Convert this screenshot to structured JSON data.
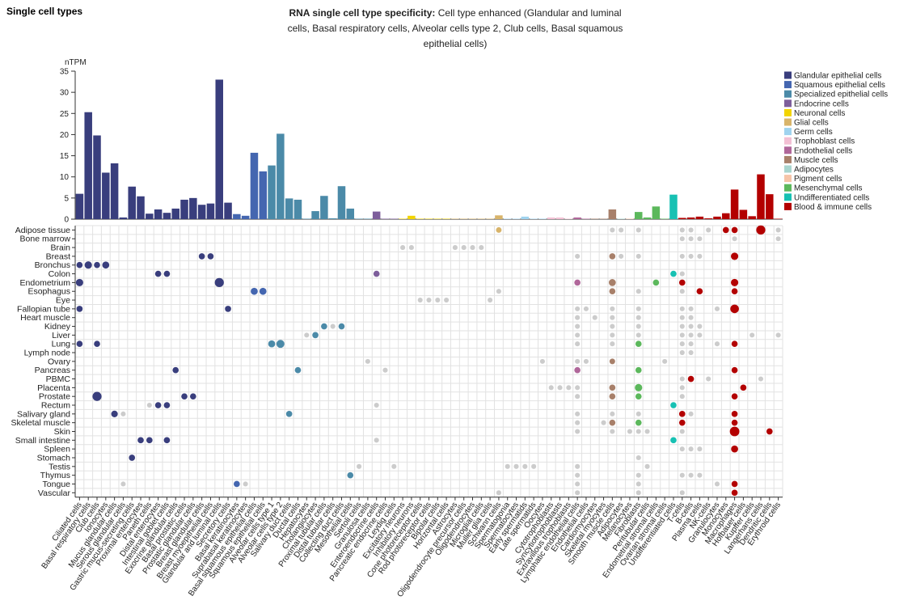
{
  "header": {
    "title": "Single cell types"
  },
  "chart_data": {
    "type": "bar",
    "title_bold": "RNA single cell type specificity:",
    "title": "Cell type enhanced (Glandular and luminal cells, Basal respiratory cells, Alveolar cells type 2, Club cells, Basal squamous epithelial cells)",
    "ylabel": "nTPM",
    "ylim": [
      0,
      35
    ],
    "yticks": [
      0,
      5,
      10,
      15,
      20,
      25,
      30,
      35
    ],
    "legend": [
      {
        "name": "Glandular epithelial cells",
        "color": "#393e7d"
      },
      {
        "name": "Squamous epithelial cells",
        "color": "#4466b0"
      },
      {
        "name": "Specialized epithelial cells",
        "color": "#4b8aa8"
      },
      {
        "name": "Endocrine cells",
        "color": "#7d5e9b"
      },
      {
        "name": "Neuronal cells",
        "color": "#f2d400"
      },
      {
        "name": "Glial cells",
        "color": "#d8b46a"
      },
      {
        "name": "Germ cells",
        "color": "#9fd3ef"
      },
      {
        "name": "Trophoblast cells",
        "color": "#f3c0d4"
      },
      {
        "name": "Endothelial cells",
        "color": "#b0679a"
      },
      {
        "name": "Muscle cells",
        "color": "#a8806a"
      },
      {
        "name": "Adipocytes",
        "color": "#a9d5cf"
      },
      {
        "name": "Pigment cells",
        "color": "#f6c4a8"
      },
      {
        "name": "Mesenchymal cells",
        "color": "#5cb85c"
      },
      {
        "name": "Undifferentiated cells",
        "color": "#17c1b3"
      },
      {
        "name": "Blood & immune cells",
        "color": "#b30000"
      }
    ],
    "categories": [
      "Ciliated cells",
      "Basal respiratory cells",
      "Club cells",
      "Ionocytes",
      "Mucus glandular cells",
      "Serous glandular cells",
      "Gastric mucus-secreting cells",
      "Proximal enterocytes",
      "Paneth cells",
      "Distal enterocytes",
      "Intestinal goblet cells",
      "Exocrine glandular cells",
      "Basal prostatic cells",
      "Prostatic glandular cells",
      "Breast glandular cells",
      "Breast myoepithelial cells",
      "Glandular and luminal cells",
      "Secretory cells",
      "Basal keratinocytes",
      "Suprabasal keratinocytes",
      "Basal squamous epithelial cells",
      "Squamous epithelial cells",
      "Alveolar cells type 1",
      "Alveolar cells type 2",
      "Salivary duct cells",
      "Ductal cells",
      "Hepatocytes",
      "Cholangiocytes",
      "Proximal tubular cells",
      "Distal tubular cells",
      "Collecting duct cells",
      "Mesothelial cells",
      "Sertoli cells",
      "Granulosa cells",
      "Enteroendocrine cells",
      "Pancreatic endocrine cells",
      "Leydig cells",
      "Excitatory neurons",
      "Inhibitory neurons",
      "Cone photoreceptor cells",
      "Rod photoreceptor cells",
      "Bipolar cells",
      "Horizontal cells",
      "Astrocytes",
      "Oligodendrocyte precursor cells",
      "Oligodendrocytes",
      "Microglial cells",
      "Muller glia cells",
      "Schwann cells",
      "Spermatogonia",
      "Spermatocytes",
      "Early spermatids",
      "Late spermatids",
      "Oocytes",
      "Cytotrophoblasts",
      "Syncytiotrophoblasts",
      "Extravillous trophoblasts",
      "Lymphatic endothelial cells",
      "Endothelial cells",
      "Cardiomyocytes",
      "Skeletal myocytes",
      "Smooth muscle cells",
      "Adipocytes",
      "Melanocytes",
      "Fibroblasts",
      "Peritubular cells",
      "Endometrial stromal cells",
      "Ovarian stromal cells",
      "Undifferentiated cells",
      "T-cells",
      "B-cells",
      "Plasma cells",
      "NK-cells",
      "Granulocytes",
      "Monocytes",
      "Macrophages",
      "Hofbauer cells",
      "Kupffer cells",
      "Langerhans cells",
      "Dendritic cells",
      "Erythroid cells"
    ],
    "group": [
      0,
      0,
      0,
      0,
      0,
      0,
      0,
      0,
      0,
      0,
      0,
      0,
      0,
      0,
      0,
      0,
      0,
      0,
      1,
      1,
      1,
      1,
      2,
      2,
      2,
      2,
      2,
      2,
      2,
      2,
      2,
      2,
      2,
      2,
      3,
      3,
      3,
      4,
      4,
      4,
      4,
      4,
      4,
      5,
      5,
      5,
      5,
      5,
      5,
      6,
      6,
      6,
      6,
      6,
      7,
      7,
      7,
      8,
      8,
      9,
      9,
      9,
      10,
      11,
      12,
      12,
      12,
      12,
      13,
      14,
      14,
      14,
      14,
      14,
      14,
      14,
      14,
      14,
      14,
      14,
      14
    ],
    "values": [
      6,
      25.3,
      19.8,
      11,
      13.2,
      0.4,
      7.7,
      5.4,
      1.3,
      2.3,
      1.5,
      2.5,
      4.6,
      5,
      3.4,
      3.7,
      33,
      3.9,
      1.2,
      0.8,
      15.7,
      11.3,
      12.7,
      20.2,
      4.9,
      4.6,
      0.1,
      1.9,
      5.5,
      0.2,
      7.8,
      2.5,
      0.1,
      0.1,
      1.8,
      0.1,
      0.1,
      0.1,
      0.8,
      0.1,
      0.1,
      0.1,
      0.1,
      0.1,
      0.1,
      0.1,
      0.1,
      0.1,
      0.9,
      0.1,
      0.1,
      0.6,
      0.1,
      0.1,
      0.4,
      0.4,
      0.1,
      0.4,
      0.1,
      0.1,
      0.1,
      2.3,
      0.1,
      0.1,
      1.7,
      0.4,
      3,
      0.1,
      5.8,
      0.3,
      0.4,
      0.6,
      0.2,
      0.6,
      1.4,
      7,
      2.2,
      0.7,
      10.6,
      5.9,
      0.1
    ],
    "tissues": [
      "Adipose tissue",
      "Bone marrow",
      "Brain",
      "Breast",
      "Bronchus",
      "Colon",
      "Endometrium",
      "Esophagus",
      "Eye",
      "Fallopian tube",
      "Heart muscle",
      "Kidney",
      "Liver",
      "Lung",
      "Lymph node",
      "Ovary",
      "Pancreas",
      "PBMC",
      "Placenta",
      "Prostate",
      "Rectum",
      "Salivary gland",
      "Skeletal muscle",
      "Skin",
      "Small intestine",
      "Spleen",
      "Stomach",
      "Testis",
      "Thymus",
      "Tongue",
      "Vascular"
    ],
    "enhanced_dots": [
      [
        0,
        48,
        2
      ],
      [
        0,
        74,
        3
      ],
      [
        0,
        75,
        3
      ],
      [
        0,
        78,
        12
      ],
      [
        3,
        14,
        3
      ],
      [
        3,
        15,
        3
      ],
      [
        3,
        61,
        3
      ],
      [
        3,
        75,
        6
      ],
      [
        4,
        0,
        3
      ],
      [
        4,
        1,
        6
      ],
      [
        4,
        2,
        3
      ],
      [
        4,
        3,
        5
      ],
      [
        5,
        9,
        3
      ],
      [
        5,
        10,
        3
      ],
      [
        5,
        34,
        3
      ],
      [
        5,
        68,
        3
      ],
      [
        6,
        0,
        6
      ],
      [
        6,
        16,
        12
      ],
      [
        6,
        57,
        3
      ],
      [
        6,
        61,
        5
      ],
      [
        6,
        66,
        3
      ],
      [
        6,
        69,
        3
      ],
      [
        6,
        75,
        6
      ],
      [
        7,
        20,
        5
      ],
      [
        7,
        21,
        5
      ],
      [
        7,
        61,
        3
      ],
      [
        7,
        71,
        3
      ],
      [
        7,
        75,
        3
      ],
      [
        9,
        0,
        3
      ],
      [
        9,
        17,
        3
      ],
      [
        9,
        75,
        10
      ],
      [
        11,
        28,
        3
      ],
      [
        11,
        30,
        3
      ],
      [
        12,
        27,
        3
      ],
      [
        13,
        0,
        3
      ],
      [
        13,
        2,
        3
      ],
      [
        13,
        22,
        5
      ],
      [
        13,
        23,
        8
      ],
      [
        13,
        64,
        3
      ],
      [
        13,
        75,
        3
      ],
      [
        15,
        61,
        2
      ],
      [
        16,
        11,
        3
      ],
      [
        16,
        25,
        3
      ],
      [
        16,
        57,
        3
      ],
      [
        16,
        64,
        3
      ],
      [
        16,
        75,
        3
      ],
      [
        17,
        70,
        3
      ],
      [
        18,
        61,
        3
      ],
      [
        18,
        64,
        6
      ],
      [
        18,
        76,
        3
      ],
      [
        19,
        2,
        12
      ],
      [
        19,
        12,
        3
      ],
      [
        19,
        13,
        3
      ],
      [
        19,
        61,
        3
      ],
      [
        19,
        64,
        3
      ],
      [
        19,
        75,
        3
      ],
      [
        20,
        9,
        3
      ],
      [
        20,
        10,
        3
      ],
      [
        20,
        68,
        3
      ],
      [
        21,
        4,
        4
      ],
      [
        21,
        24,
        3
      ],
      [
        21,
        69,
        3
      ],
      [
        21,
        75,
        3
      ],
      [
        22,
        61,
        3
      ],
      [
        22,
        64,
        3
      ],
      [
        22,
        69,
        3
      ],
      [
        22,
        75,
        3
      ],
      [
        23,
        75,
        14
      ],
      [
        23,
        79,
        3
      ],
      [
        24,
        7,
        3
      ],
      [
        24,
        8,
        3
      ],
      [
        24,
        10,
        3
      ],
      [
        24,
        68,
        3
      ],
      [
        25,
        75,
        5
      ],
      [
        26,
        6,
        3
      ],
      [
        28,
        31,
        3
      ],
      [
        29,
        18,
        3
      ],
      [
        29,
        75,
        3
      ],
      [
        30,
        75,
        3
      ]
    ],
    "other_dots": [
      [
        0,
        61,
        1
      ],
      [
        0,
        62,
        1
      ],
      [
        0,
        64,
        1
      ],
      [
        0,
        69,
        1
      ],
      [
        0,
        70,
        1
      ],
      [
        0,
        72,
        1
      ],
      [
        0,
        80,
        1
      ],
      [
        1,
        69,
        1
      ],
      [
        1,
        70,
        1
      ],
      [
        1,
        71,
        1
      ],
      [
        1,
        75,
        1
      ],
      [
        1,
        80,
        1
      ],
      [
        2,
        37,
        1
      ],
      [
        2,
        38,
        1
      ],
      [
        2,
        43,
        1
      ],
      [
        2,
        44,
        1
      ],
      [
        2,
        45,
        1
      ],
      [
        2,
        46,
        1
      ],
      [
        3,
        57,
        1
      ],
      [
        3,
        62,
        1
      ],
      [
        3,
        64,
        1
      ],
      [
        3,
        69,
        1
      ],
      [
        3,
        70,
        1
      ],
      [
        3,
        71,
        1
      ],
      [
        5,
        69,
        1
      ],
      [
        7,
        48,
        1
      ],
      [
        7,
        64,
        1
      ],
      [
        7,
        69,
        1
      ],
      [
        8,
        39,
        1
      ],
      [
        8,
        40,
        1
      ],
      [
        8,
        41,
        1
      ],
      [
        8,
        42,
        1
      ],
      [
        8,
        47,
        1
      ],
      [
        9,
        57,
        1
      ],
      [
        9,
        58,
        1
      ],
      [
        9,
        61,
        1
      ],
      [
        9,
        64,
        1
      ],
      [
        9,
        69,
        1
      ],
      [
        9,
        70,
        1
      ],
      [
        9,
        73,
        1
      ],
      [
        10,
        57,
        1
      ],
      [
        10,
        59,
        1
      ],
      [
        10,
        61,
        1
      ],
      [
        10,
        64,
        1
      ],
      [
        10,
        69,
        1
      ],
      [
        10,
        70,
        1
      ],
      [
        11,
        29,
        1
      ],
      [
        11,
        57,
        1
      ],
      [
        11,
        61,
        1
      ],
      [
        11,
        64,
        1
      ],
      [
        11,
        69,
        1
      ],
      [
        11,
        70,
        1
      ],
      [
        11,
        71,
        1
      ],
      [
        12,
        26,
        1
      ],
      [
        12,
        57,
        1
      ],
      [
        12,
        61,
        1
      ],
      [
        12,
        64,
        1
      ],
      [
        12,
        69,
        1
      ],
      [
        12,
        70,
        1
      ],
      [
        12,
        71,
        1
      ],
      [
        12,
        77,
        1
      ],
      [
        12,
        80,
        1
      ],
      [
        13,
        57,
        1
      ],
      [
        13,
        61,
        1
      ],
      [
        13,
        69,
        1
      ],
      [
        13,
        70,
        1
      ],
      [
        13,
        73,
        1
      ],
      [
        14,
        69,
        1
      ],
      [
        14,
        70,
        1
      ],
      [
        15,
        33,
        1
      ],
      [
        15,
        53,
        1
      ],
      [
        15,
        57,
        1
      ],
      [
        15,
        58,
        1
      ],
      [
        15,
        67,
        1
      ],
      [
        16,
        35,
        1
      ],
      [
        17,
        69,
        1
      ],
      [
        17,
        72,
        1
      ],
      [
        17,
        78,
        1
      ],
      [
        18,
        54,
        1
      ],
      [
        18,
        55,
        1
      ],
      [
        18,
        56,
        1
      ],
      [
        18,
        57,
        1
      ],
      [
        18,
        69,
        1
      ],
      [
        19,
        57,
        1
      ],
      [
        19,
        69,
        1
      ],
      [
        20,
        8,
        1
      ],
      [
        20,
        34,
        1
      ],
      [
        21,
        5,
        1
      ],
      [
        21,
        57,
        1
      ],
      [
        21,
        61,
        1
      ],
      [
        21,
        64,
        1
      ],
      [
        21,
        70,
        1
      ],
      [
        22,
        57,
        1
      ],
      [
        22,
        60,
        1
      ],
      [
        23,
        57,
        1
      ],
      [
        23,
        61,
        1
      ],
      [
        23,
        63,
        1
      ],
      [
        23,
        64,
        1
      ],
      [
        23,
        65,
        1
      ],
      [
        23,
        69,
        1
      ],
      [
        24,
        34,
        1
      ],
      [
        25,
        69,
        1
      ],
      [
        25,
        70,
        1
      ],
      [
        25,
        71,
        1
      ],
      [
        26,
        64,
        1
      ],
      [
        27,
        32,
        1
      ],
      [
        27,
        36,
        1
      ],
      [
        27,
        49,
        1
      ],
      [
        27,
        50,
        1
      ],
      [
        27,
        51,
        1
      ],
      [
        27,
        52,
        1
      ],
      [
        27,
        57,
        1
      ],
      [
        27,
        65,
        1
      ],
      [
        28,
        57,
        1
      ],
      [
        28,
        64,
        1
      ],
      [
        28,
        69,
        1
      ],
      [
        28,
        70,
        1
      ],
      [
        28,
        71,
        1
      ],
      [
        29,
        5,
        1
      ],
      [
        29,
        19,
        1
      ],
      [
        29,
        57,
        1
      ],
      [
        29,
        64,
        1
      ],
      [
        29,
        73,
        1
      ],
      [
        30,
        48,
        1
      ],
      [
        30,
        57,
        1
      ],
      [
        30,
        64,
        1
      ],
      [
        30,
        69,
        1
      ]
    ],
    "other_dot_color": "#cccccc",
    "grid": true
  }
}
